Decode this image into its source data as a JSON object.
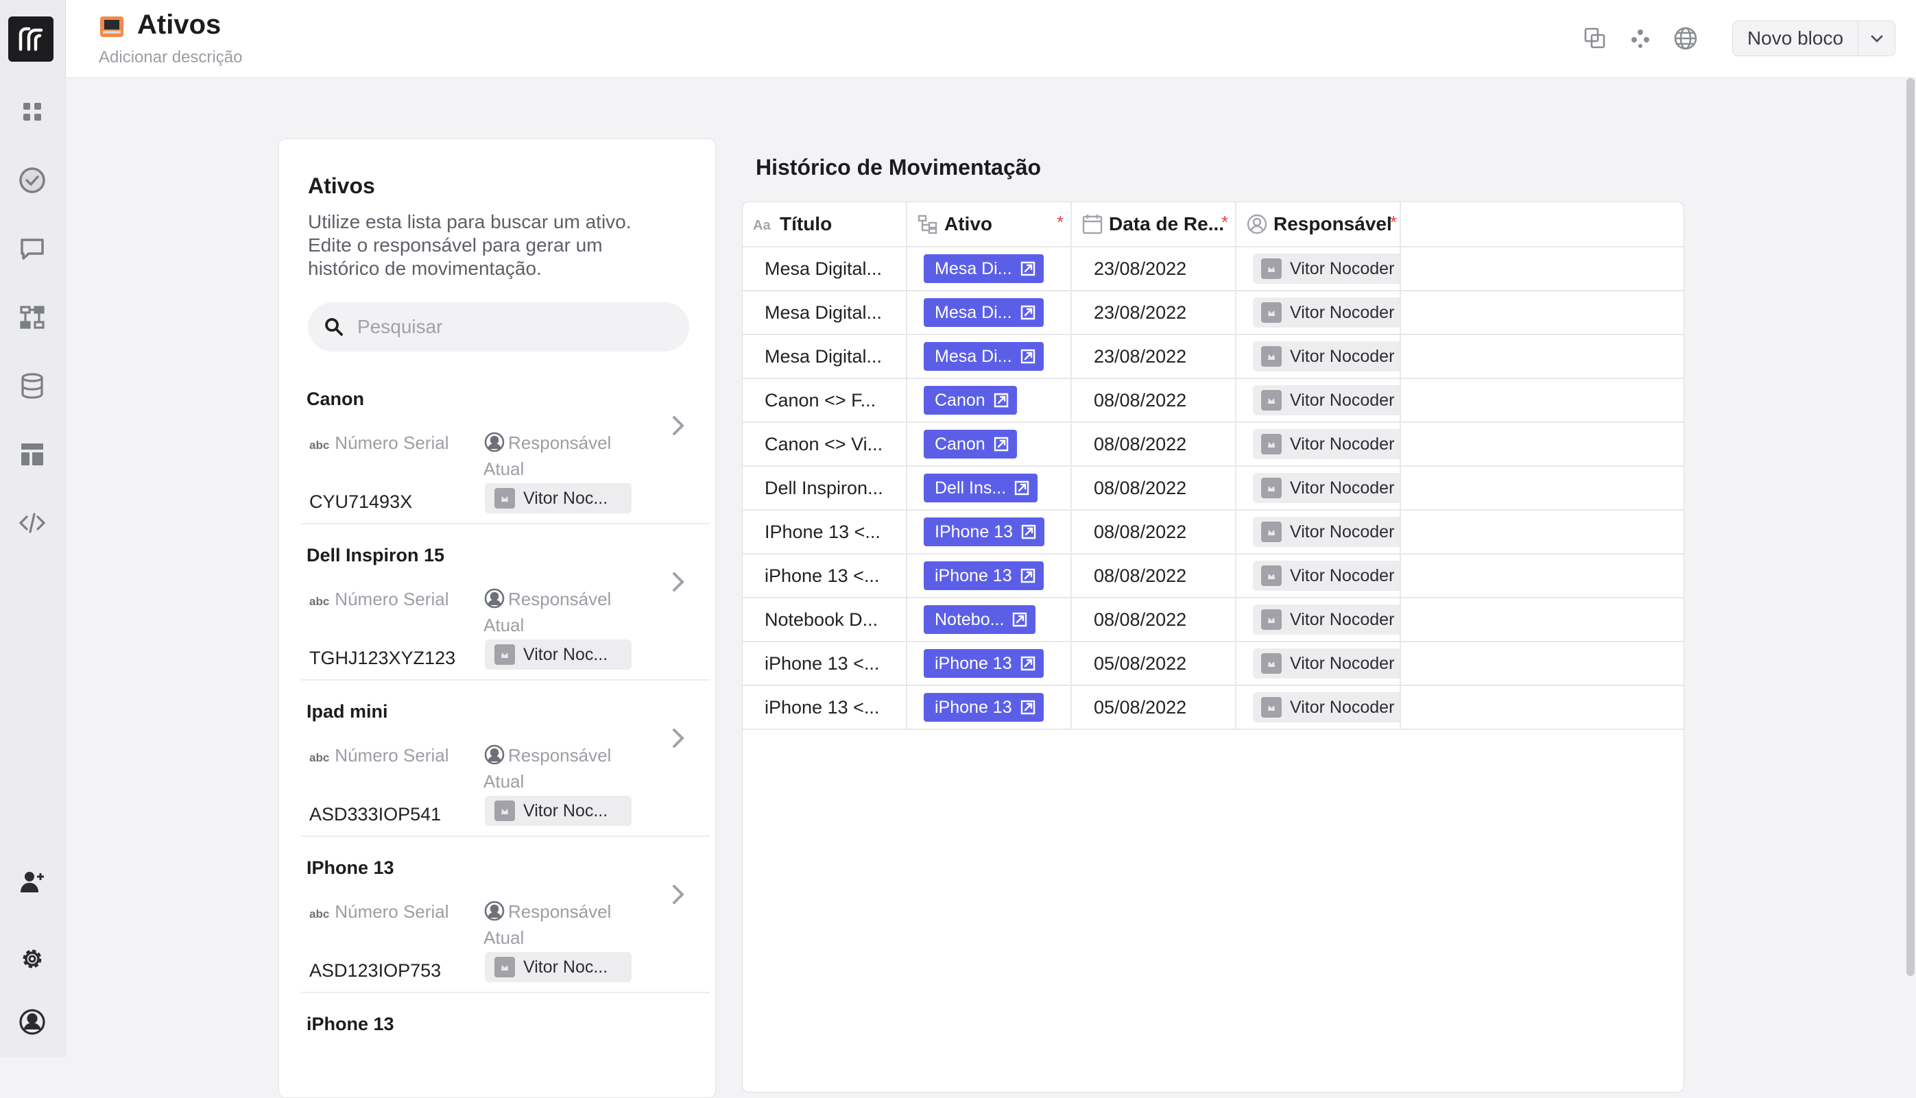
{
  "header": {
    "title": "Ativos",
    "description": "Adicionar descrição",
    "new_block_label": "Novo bloco"
  },
  "sidebar": {
    "icons": [
      "logo-icon",
      "dashboard-icon",
      "tasks-icon",
      "chat-icon",
      "workflow-icon",
      "database-icon",
      "layout-icon",
      "code-icon",
      "add-user-icon",
      "gear-icon",
      "profile-icon"
    ]
  },
  "assets_card": {
    "title": "Ativos",
    "description": "Utilize esta lista para buscar um ativo. Edite o responsável para gerar um histórico de movimentação.",
    "search_placeholder": "Pesquisar",
    "serial_label": "Número Serial",
    "responsible_label": "Responsável Atual",
    "items": [
      {
        "name": "Canon",
        "serial": "CYU71493X",
        "responsible": "Vitor Noc..."
      },
      {
        "name": "Dell Inspiron 15",
        "serial": "TGHJ123XYZ123",
        "responsible": "Vitor Noc..."
      },
      {
        "name": "Ipad mini",
        "serial": "ASD333IOP541",
        "responsible": "Vitor Noc..."
      },
      {
        "name": "IPhone 13",
        "serial": "ASD123IOP753",
        "responsible": "Vitor Noc..."
      },
      {
        "name": "iPhone 13",
        "serial": "",
        "responsible": ""
      }
    ]
  },
  "history": {
    "title": "Histórico de Movimentação",
    "columns": {
      "titulo": "Título",
      "ativo": "Ativo",
      "data": "Data de Re...",
      "responsavel": "Responsável",
      "required_mark": "*"
    },
    "rows": [
      {
        "titulo": "Mesa Digital...",
        "ativo": "Mesa Di...",
        "data": "23/08/2022",
        "responsavel": "Vitor Nocoder"
      },
      {
        "titulo": "Mesa Digital...",
        "ativo": "Mesa Di...",
        "data": "23/08/2022",
        "responsavel": "Vitor Nocoder"
      },
      {
        "titulo": "Mesa Digital...",
        "ativo": "Mesa Di...",
        "data": "23/08/2022",
        "responsavel": "Vitor Nocoder"
      },
      {
        "titulo": "Canon <> F...",
        "ativo": "Canon",
        "data": "08/08/2022",
        "responsavel": "Vitor Nocoder"
      },
      {
        "titulo": "Canon <> Vi...",
        "ativo": "Canon",
        "data": "08/08/2022",
        "responsavel": "Vitor Nocoder"
      },
      {
        "titulo": "Dell Inspiron...",
        "ativo": "Dell Ins...",
        "data": "08/08/2022",
        "responsavel": "Vitor Nocoder"
      },
      {
        "titulo": "IPhone 13 <...",
        "ativo": "IPhone 13",
        "data": "08/08/2022",
        "responsavel": "Vitor Nocoder"
      },
      {
        "titulo": "iPhone 13 <...",
        "ativo": "iPhone 13",
        "data": "08/08/2022",
        "responsavel": "Vitor Nocoder"
      },
      {
        "titulo": "Notebook D...",
        "ativo": "Notebo...",
        "data": "08/08/2022",
        "responsavel": "Vitor Nocoder"
      },
      {
        "titulo": "iPhone 13 <...",
        "ativo": "iPhone 13",
        "data": "05/08/2022",
        "responsavel": "Vitor Nocoder"
      },
      {
        "titulo": "iPhone 13 <...",
        "ativo": "iPhone 13",
        "data": "05/08/2022",
        "responsavel": "Vitor Nocoder"
      }
    ]
  },
  "colors": {
    "accent": "#5b5fe8",
    "required": "#e2483d",
    "logo_bg": "#1d1d1f"
  }
}
